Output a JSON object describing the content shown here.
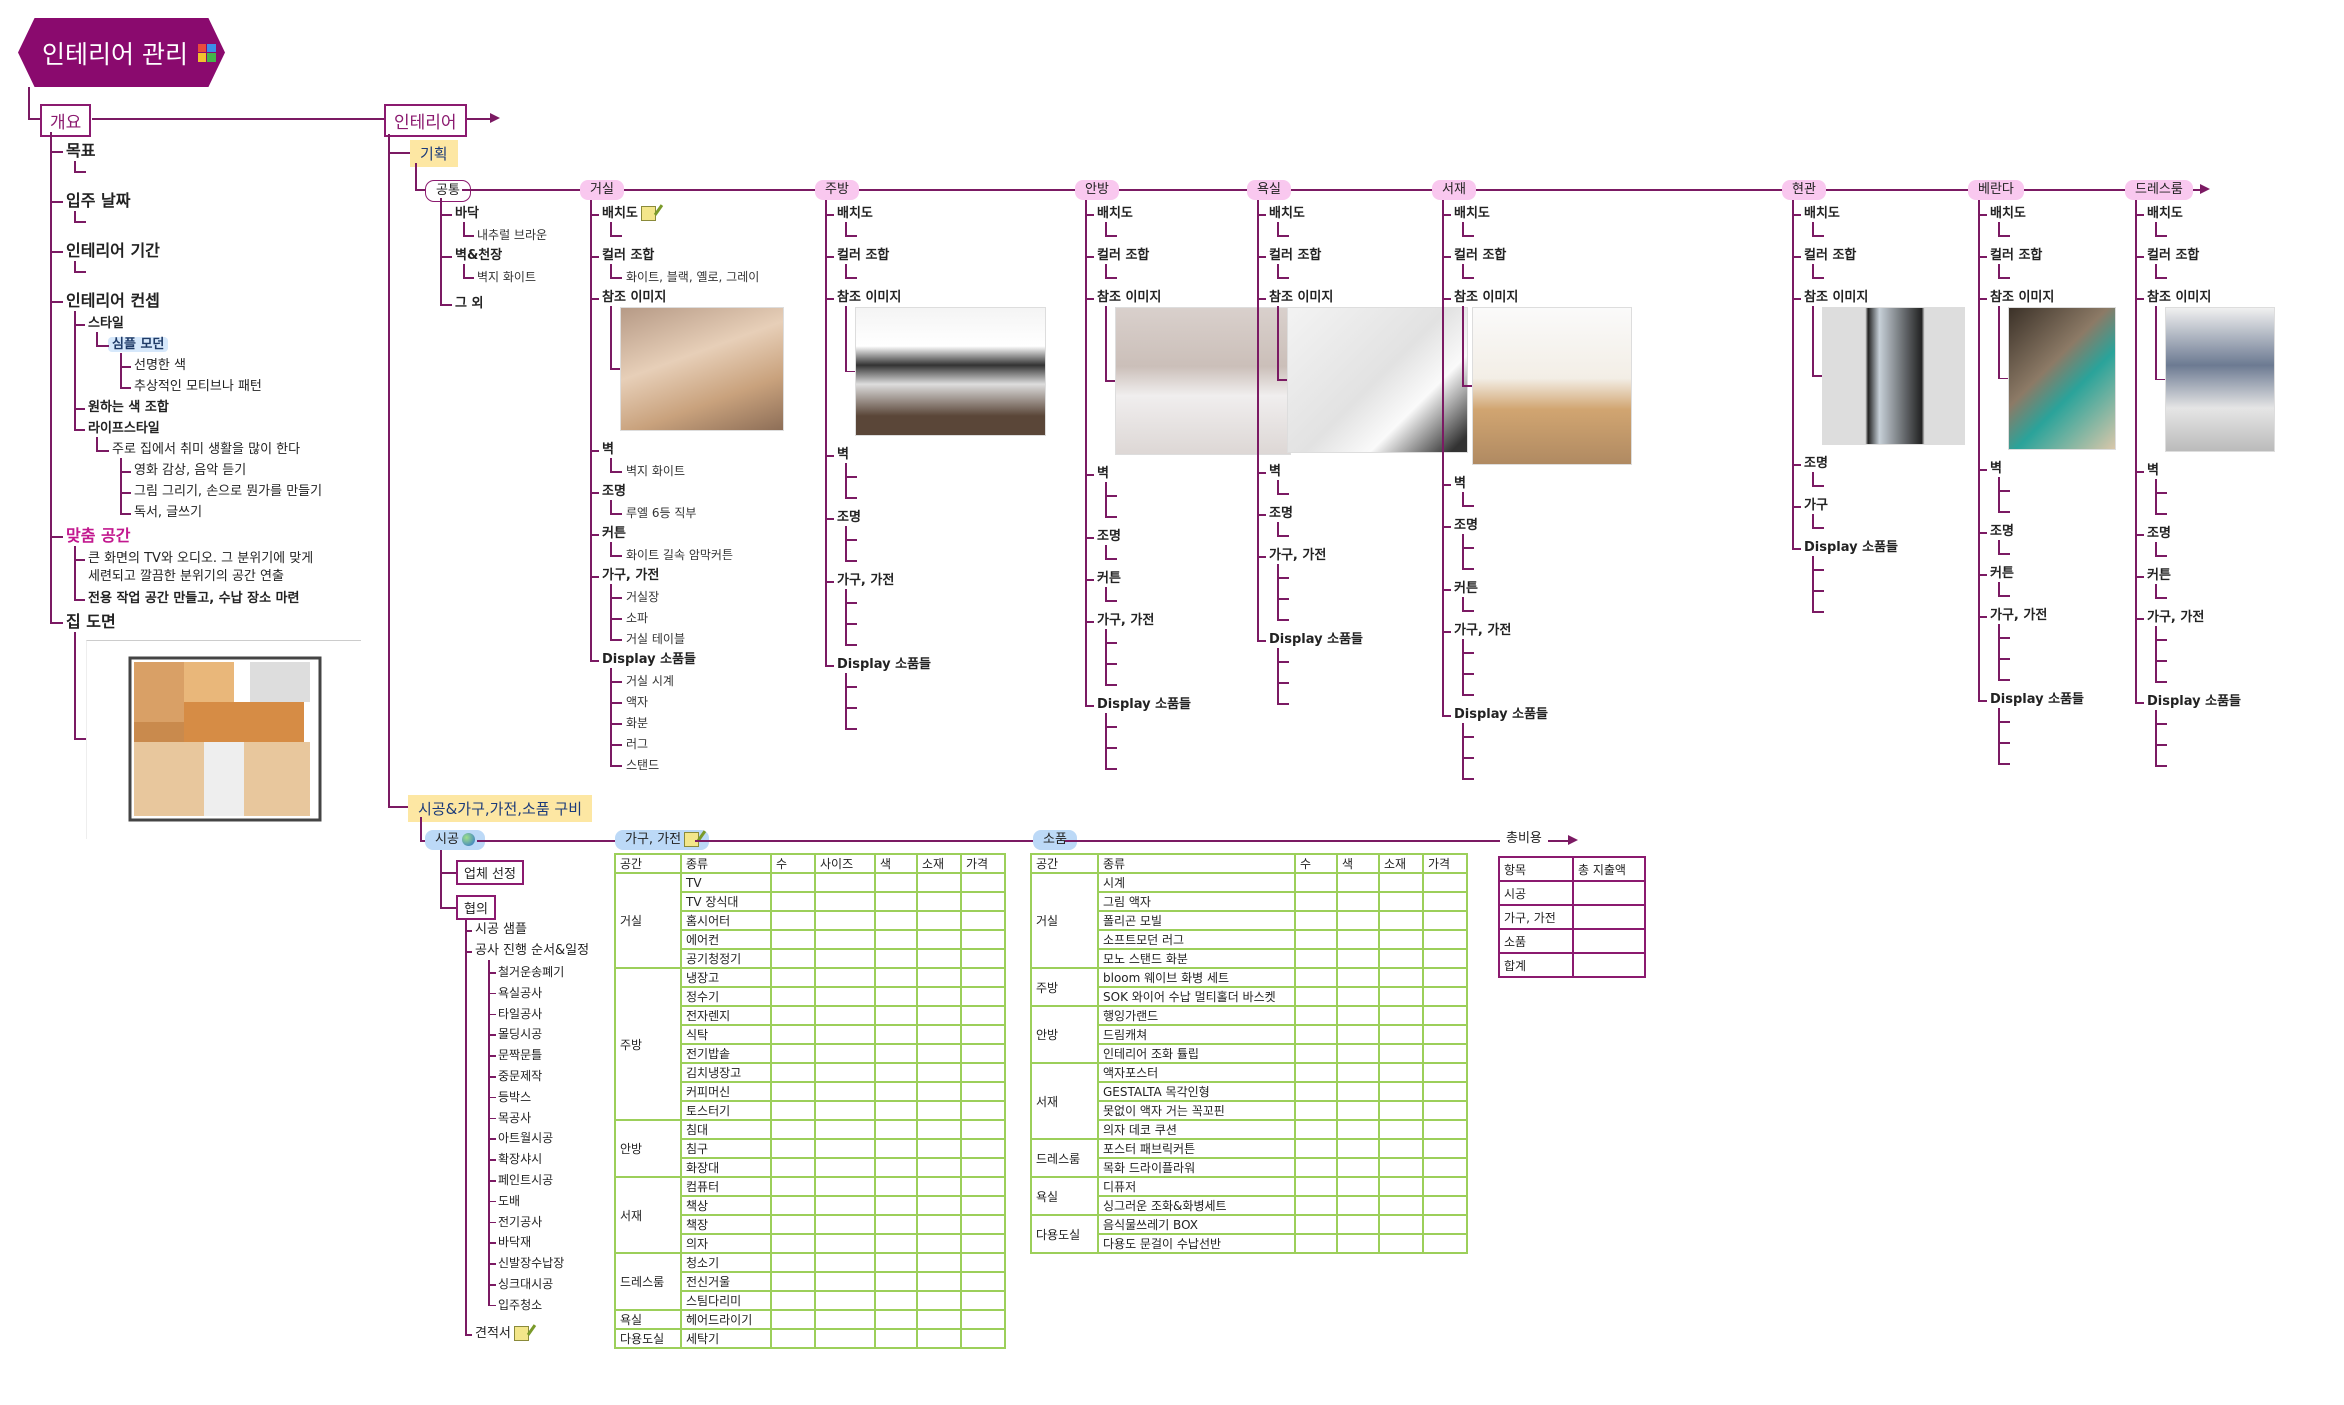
{
  "root": {
    "title": "인테리어 관리",
    "icon": "puzzle-icon"
  },
  "overview": {
    "label": "개요",
    "items": [
      {
        "t": "목표",
        "c": [
          {
            "t": ""
          }
        ]
      },
      {
        "t": "입주 날짜",
        "c": [
          {
            "t": ""
          }
        ]
      },
      {
        "t": "인테리어 기간",
        "c": [
          {
            "t": ""
          }
        ]
      },
      {
        "t": "인테리어 컨셉",
        "c": [
          {
            "t": "스타일",
            "c": [
              {
                "t": "심플 모던",
                "highlight": true,
                "c": [
                  {
                    "t": "선명한 색"
                  },
                  {
                    "t": "추상적인 모티브나 패턴"
                  }
                ]
              }
            ]
          },
          {
            "t": "원하는 색 조합"
          },
          {
            "t": "라이프스타일",
            "c": [
              {
                "t": "주로 집에서 취미 생활을 많이 한다",
                "c": [
                  {
                    "t": "영화 감상, 음악 듣기"
                  },
                  {
                    "t": "그림 그리기, 손으로 뭔가를 만들기"
                  },
                  {
                    "t": "독서, 글쓰기"
                  }
                ]
              }
            ]
          }
        ]
      },
      {
        "t": "맞춤 공간",
        "accent": true,
        "c": [
          {
            "t": "큰 화면의 TV와 오디오. 그 분위기에 맞게\n세련되고 깔끔한 분위기의 공간 연출"
          },
          {
            "t": "전용 작업 공간 만들고, 수납 장소 마련"
          }
        ]
      },
      {
        "t": "집 도면",
        "image": "floor-plan"
      }
    ]
  },
  "interior": {
    "label": "인테리어",
    "planning": {
      "label": "기획",
      "common": {
        "label": "공통",
        "items": [
          {
            "t": "바닥",
            "c": [
              "내추럴 브라운"
            ]
          },
          {
            "t": "벽&천장",
            "c": [
              "벽지 화이트"
            ]
          },
          {
            "t": "그 외",
            "c": []
          }
        ]
      },
      "rooms": [
        {
          "name": "거실",
          "items": [
            {
              "t": "배치도",
              "icon": "note-icon",
              "c": [
                ""
              ]
            },
            {
              "t": "컬러 조합",
              "c": [
                "화이트, 블랙, 옐로, 그레이"
              ]
            },
            {
              "t": "참조 이미지",
              "image": "living-room-photo"
            },
            {
              "t": "벽",
              "c": [
                "벽지 화이트"
              ]
            },
            {
              "t": "조명",
              "c": [
                "루엘 6등 직부"
              ]
            },
            {
              "t": "커튼",
              "c": [
                "화이트 길속 암막커튼"
              ]
            },
            {
              "t": "가구, 가전",
              "c": [
                "거실장",
                "소파",
                "거실 테이블"
              ]
            },
            {
              "t": "Display 소품들",
              "c": [
                "거실 시계",
                "액자",
                "화분",
                "러그",
                "스탠드"
              ]
            }
          ]
        },
        {
          "name": "주방",
          "items": [
            {
              "t": "배치도",
              "c": [
                ""
              ]
            },
            {
              "t": "컬러 조합",
              "c": [
                ""
              ]
            },
            {
              "t": "참조 이미지",
              "image": "kitchen-photo"
            },
            {
              "t": "벽",
              "c": [
                "",
                ""
              ]
            },
            {
              "t": "조명",
              "c": [
                "",
                ""
              ]
            },
            {
              "t": "가구, 가전",
              "c": [
                "",
                "",
                ""
              ]
            },
            {
              "t": "Display 소품들",
              "c": [
                "",
                "",
                ""
              ]
            }
          ]
        },
        {
          "name": "안방",
          "items": [
            {
              "t": "배치도",
              "c": [
                ""
              ]
            },
            {
              "t": "컬러 조합",
              "c": [
                ""
              ]
            },
            {
              "t": "참조 이미지",
              "image": "bedroom-photo"
            },
            {
              "t": "벽",
              "c": [
                "",
                ""
              ]
            },
            {
              "t": "조명",
              "c": [
                ""
              ]
            },
            {
              "t": "커튼",
              "c": [
                ""
              ]
            },
            {
              "t": "가구, 가전",
              "c": [
                "",
                "",
                ""
              ]
            },
            {
              "t": "Display 소품들",
              "c": [
                "",
                "",
                ""
              ]
            }
          ]
        },
        {
          "name": "욕실",
          "items": [
            {
              "t": "배치도",
              "c": [
                ""
              ]
            },
            {
              "t": "컬러 조합",
              "c": [
                ""
              ]
            },
            {
              "t": "참조 이미지",
              "image": "bathroom-photo"
            },
            {
              "t": "벽",
              "c": [
                ""
              ]
            },
            {
              "t": "조명",
              "c": [
                ""
              ]
            },
            {
              "t": "가구, 가전",
              "c": [
                "",
                "",
                ""
              ]
            },
            {
              "t": "Display 소품들",
              "c": [
                "",
                "",
                ""
              ]
            }
          ]
        },
        {
          "name": "서재",
          "items": [
            {
              "t": "배치도",
              "c": [
                ""
              ]
            },
            {
              "t": "컬러 조합",
              "c": [
                ""
              ]
            },
            {
              "t": "참조 이미지",
              "image": "study-photo"
            },
            {
              "t": "벽",
              "c": [
                ""
              ]
            },
            {
              "t": "조명",
              "c": [
                "",
                ""
              ]
            },
            {
              "t": "커튼",
              "c": [
                ""
              ]
            },
            {
              "t": "가구, 가전",
              "c": [
                "",
                "",
                ""
              ]
            },
            {
              "t": "Display 소품들",
              "c": [
                "",
                "",
                ""
              ]
            }
          ]
        },
        {
          "name": "현관",
          "items": [
            {
              "t": "배치도",
              "c": [
                ""
              ]
            },
            {
              "t": "컬러 조합",
              "c": [
                ""
              ]
            },
            {
              "t": "참조 이미지",
              "image": "entrance-photo"
            },
            {
              "t": "조명",
              "c": [
                ""
              ]
            },
            {
              "t": "가구",
              "c": [
                ""
              ]
            },
            {
              "t": "Display 소품들",
              "c": [
                "",
                "",
                ""
              ]
            }
          ]
        },
        {
          "name": "베란다",
          "items": [
            {
              "t": "배치도",
              "c": [
                ""
              ]
            },
            {
              "t": "컬러 조합",
              "c": [
                ""
              ]
            },
            {
              "t": "참조 이미지",
              "image": "balcony-photo"
            },
            {
              "t": "벽",
              "c": [
                "",
                ""
              ]
            },
            {
              "t": "조명",
              "c": [
                ""
              ]
            },
            {
              "t": "커튼",
              "c": [
                ""
              ]
            },
            {
              "t": "가구, 가전",
              "c": [
                "",
                "",
                ""
              ]
            },
            {
              "t": "Display 소품들",
              "c": [
                "",
                "",
                ""
              ]
            }
          ]
        },
        {
          "name": "드레스룸",
          "items": [
            {
              "t": "배치도",
              "c": [
                ""
              ]
            },
            {
              "t": "컬러 조합",
              "c": [
                ""
              ]
            },
            {
              "t": "참조 이미지",
              "image": "dressroom-photo"
            },
            {
              "t": "벽",
              "c": [
                "",
                ""
              ]
            },
            {
              "t": "조명",
              "c": [
                ""
              ]
            },
            {
              "t": "커튼",
              "c": [
                ""
              ]
            },
            {
              "t": "가구, 가전",
              "c": [
                "",
                "",
                ""
              ]
            },
            {
              "t": "Display 소품들",
              "c": [
                "",
                "",
                ""
              ]
            }
          ]
        }
      ]
    },
    "procurement": {
      "label": "시공&가구,가전,소품 구비",
      "construction": {
        "label": "시공",
        "vendor": "업체 선정",
        "consult": "협의",
        "sample": "시공 샘플",
        "schedule": "공사 진행 순서&일정",
        "steps": [
          "철거운송폐기",
          "욕실공사",
          "타일공사",
          "몰딩시공",
          "문짝문틀",
          "중문제작",
          "등박스",
          "목공사",
          "아트월시공",
          "확장샤시",
          "페인트시공",
          "도배",
          "전기공사",
          "바닥재",
          "신발장수납장",
          "싱크대시공",
          "입주청소"
        ],
        "estimate": "견적서"
      },
      "furniture": {
        "label": "가구, 가전",
        "headers": [
          "공간",
          "종류",
          "수",
          "사이즈",
          "색",
          "소재",
          "가격"
        ],
        "groups": [
          {
            "space": "거실",
            "items": [
              "TV",
              "TV 장식대",
              "홈시어터",
              "에어컨",
              "공기청정기"
            ]
          },
          {
            "space": "주방",
            "items": [
              "냉장고",
              "정수기",
              "전자렌지",
              "식탁",
              "전기밥솥",
              "김치냉장고",
              "커피머신",
              "토스터기"
            ]
          },
          {
            "space": "안방",
            "items": [
              "침대",
              "침구",
              "화장대"
            ]
          },
          {
            "space": "서재",
            "items": [
              "컴퓨터",
              "책상",
              "책장",
              "의자"
            ]
          },
          {
            "space": "드레스룸",
            "items": [
              "청소기",
              "전신거울",
              "스팀다리미"
            ]
          },
          {
            "space": "욕실",
            "items": [
              "헤어드라이기"
            ]
          },
          {
            "space": "다용도실",
            "items": [
              "세탁기"
            ]
          }
        ]
      },
      "accessories": {
        "label": "소품",
        "headers": [
          "공간",
          "종류",
          "수",
          "색",
          "소재",
          "가격"
        ],
        "groups": [
          {
            "space": "거실",
            "items": [
              "시계",
              "그림 액자",
              "폴리곤 모빌",
              "소프트모던 러그",
              "모노 스탠드 화분"
            ]
          },
          {
            "space": "주방",
            "items": [
              "bloom 웨이브 화병 세트",
              "SOK 와이어 수납 멀티홀더 바스켓"
            ]
          },
          {
            "space": "안방",
            "items": [
              "행잉가랜드",
              "드림캐쳐",
              "인테리어 조화 튤립"
            ]
          },
          {
            "space": "서재",
            "items": [
              "액자포스터",
              "GESTALTA 목각인형",
              "못없이 액자 거는 꼭꼬핀",
              "의자 데코 쿠션"
            ]
          },
          {
            "space": "드레스룸",
            "items": [
              "포스터 패브릭커튼",
              "목화 드라이플라워"
            ]
          },
          {
            "space": "욕실",
            "items": [
              "디퓨저",
              "싱그러운 조화&화병세트"
            ]
          },
          {
            "space": "다용도실",
            "items": [
              "음식물쓰레기 BOX",
              "다용도 문걸이 수납선반"
            ]
          }
        ]
      },
      "total": {
        "label": "총비용",
        "headers": [
          "항목",
          "총 지출액"
        ],
        "rows": [
          "시공",
          "가구, 가전",
          "소품",
          "합계"
        ]
      }
    }
  },
  "colors": {
    "primary": "#8a0a6e",
    "line": "#7b1a63",
    "room_bubble": "#f9c8ef",
    "section_bubble": "#bcd9f7",
    "section_header": "#fde7a3",
    "accent_text": "#c2188f",
    "table_border": "#9ccf5a"
  }
}
